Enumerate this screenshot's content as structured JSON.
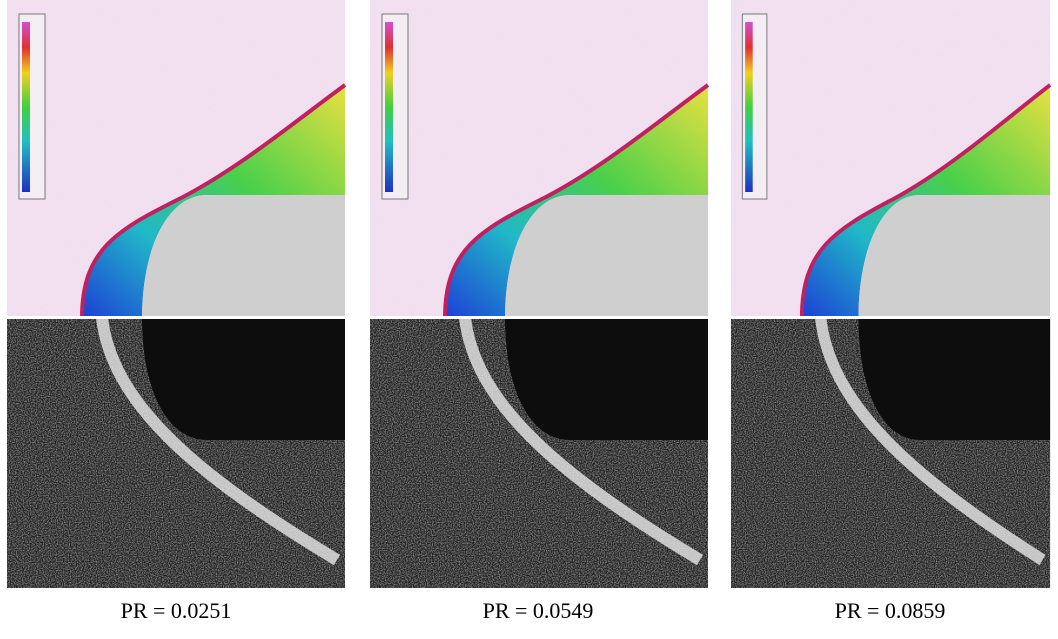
{
  "captions": [
    "PR = 0.0251",
    "PR = 0.0549",
    "PR = 0.0859"
  ]
}
